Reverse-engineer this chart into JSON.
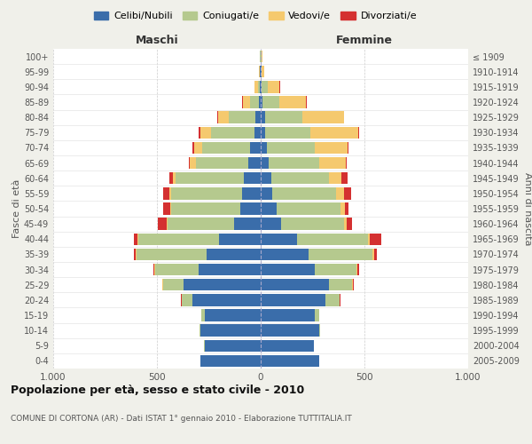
{
  "age_groups": [
    "0-4",
    "5-9",
    "10-14",
    "15-19",
    "20-24",
    "25-29",
    "30-34",
    "35-39",
    "40-44",
    "45-49",
    "50-54",
    "55-59",
    "60-64",
    "65-69",
    "70-74",
    "75-79",
    "80-84",
    "85-89",
    "90-94",
    "95-99",
    "100+"
  ],
  "birth_years": [
    "2005-2009",
    "2000-2004",
    "1995-1999",
    "1990-1994",
    "1985-1989",
    "1980-1984",
    "1975-1979",
    "1970-1974",
    "1965-1969",
    "1960-1964",
    "1955-1959",
    "1950-1954",
    "1945-1949",
    "1940-1944",
    "1935-1939",
    "1930-1934",
    "1925-1929",
    "1920-1924",
    "1915-1919",
    "1910-1914",
    "≤ 1909"
  ],
  "colors": {
    "celibi": "#3a6daa",
    "coniugati": "#b5c98e",
    "vedovi": "#f5c96e",
    "divorziati": "#d43030"
  },
  "males": {
    "celibi": [
      290,
      270,
      290,
      270,
      330,
      370,
      300,
      260,
      200,
      130,
      100,
      90,
      80,
      60,
      50,
      30,
      25,
      10,
      5,
      3,
      2
    ],
    "coniugati": [
      2,
      2,
      5,
      15,
      50,
      100,
      210,
      340,
      390,
      320,
      330,
      340,
      330,
      250,
      230,
      210,
      130,
      40,
      8,
      3,
      2
    ],
    "vedovi": [
      0,
      0,
      0,
      2,
      2,
      3,
      3,
      3,
      5,
      5,
      5,
      10,
      15,
      30,
      40,
      50,
      50,
      35,
      15,
      2,
      1
    ],
    "divorziati": [
      0,
      0,
      0,
      1,
      2,
      3,
      5,
      10,
      15,
      40,
      35,
      30,
      15,
      8,
      10,
      10,
      3,
      3,
      2,
      0,
      0
    ]
  },
  "females": {
    "celibi": [
      280,
      255,
      280,
      260,
      310,
      330,
      260,
      230,
      175,
      100,
      75,
      55,
      50,
      40,
      30,
      20,
      20,
      10,
      5,
      3,
      2
    ],
    "coniugati": [
      2,
      2,
      5,
      20,
      70,
      110,
      200,
      310,
      340,
      300,
      310,
      310,
      280,
      240,
      230,
      220,
      180,
      80,
      30,
      2,
      2
    ],
    "vedovi": [
      0,
      0,
      0,
      2,
      2,
      3,
      5,
      5,
      10,
      15,
      20,
      35,
      60,
      130,
      160,
      230,
      200,
      130,
      55,
      10,
      5
    ],
    "divorziati": [
      0,
      0,
      0,
      2,
      2,
      5,
      10,
      15,
      55,
      25,
      20,
      35,
      30,
      5,
      5,
      3,
      3,
      3,
      2,
      0,
      0
    ]
  },
  "title": "Popolazione per età, sesso e stato civile - 2010",
  "subtitle": "COMUNE DI CORTONA (AR) - Dati ISTAT 1° gennaio 2010 - Elaborazione TUTTITALIA.IT",
  "xlabel_left": "Maschi",
  "xlabel_right": "Femmine",
  "ylabel_left": "Fasce di età",
  "ylabel_right": "Anni di nascita",
  "xlim": 1000,
  "background_color": "#f0f0ea",
  "plot_bg": "#ffffff",
  "legend_labels": [
    "Celibi/Nubili",
    "Coniugati/e",
    "Vedovi/e",
    "Divorziati/e"
  ]
}
